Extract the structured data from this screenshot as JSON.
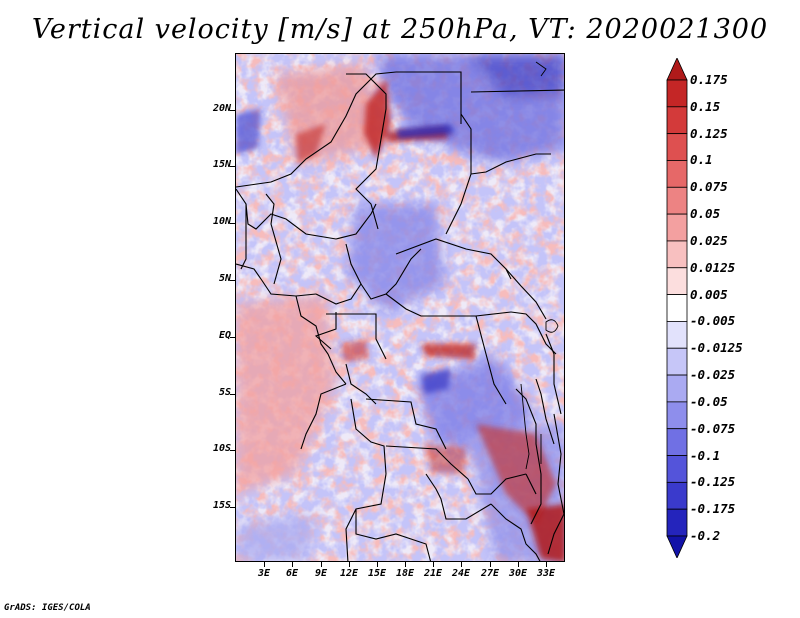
{
  "title": "Vertical velocity [m/s] at 250hPa, VT: 2020021300",
  "credit": "GrADS: IGES/COLA",
  "map": {
    "variable": "Vertical velocity",
    "units": "m/s",
    "level": "250hPa",
    "valid_time": "2020021300",
    "lat_labels": [
      "20N",
      "15N",
      "10N",
      "5N",
      "EQ",
      "5S",
      "10S",
      "15S"
    ],
    "lon_labels": [
      "3E",
      "6E",
      "9E",
      "12E",
      "15E",
      "18E",
      "21E",
      "24E",
      "27E",
      "30E",
      "33E"
    ]
  },
  "colorbar": {
    "labels": [
      "0.175",
      "0.15",
      "0.125",
      "0.1",
      "0.075",
      "0.05",
      "0.025",
      "0.0125",
      "0.005",
      "-0.005",
      "-0.0125",
      "-0.025",
      "-0.05",
      "-0.075",
      "-0.1",
      "-0.125",
      "-0.175",
      "-0.2"
    ],
    "colors": [
      "#b01a1a",
      "#c42626",
      "#d33a3a",
      "#de5050",
      "#e66868",
      "#ed8383",
      "#f3a0a0",
      "#f8c0c0",
      "#fcdede",
      "#ffffff",
      "#e2e2fc",
      "#c6c6f8",
      "#aaaaf2",
      "#8e8eec",
      "#7070e4",
      "#5454da",
      "#3a3acc",
      "#2424bc",
      "#1212a8"
    ]
  }
}
